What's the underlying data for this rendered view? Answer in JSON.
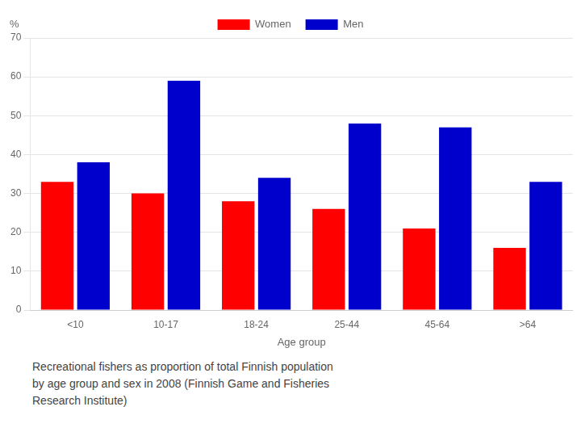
{
  "chart_data": {
    "type": "bar",
    "categories": [
      "<10",
      "10-17",
      "18-24",
      "25-44",
      "45-64",
      ">64"
    ],
    "series": [
      {
        "name": "Women",
        "color": "#ff0000",
        "values": [
          33,
          30,
          28,
          26,
          21,
          16
        ]
      },
      {
        "name": "Men",
        "color": "#0000cd",
        "values": [
          38,
          59,
          34,
          48,
          47,
          33
        ]
      }
    ],
    "xlabel": "Age group",
    "ylabel": "%",
    "caption": "Recreational fishers as proportion of total Finnish population\nby age group and sex in 2008 (Finnish Game and Fisheries\nResearch Institute)",
    "ylim": [
      0,
      70
    ],
    "yticks": [
      0,
      10,
      20,
      30,
      40,
      50,
      60,
      70
    ],
    "grid": true,
    "legend": "top"
  }
}
